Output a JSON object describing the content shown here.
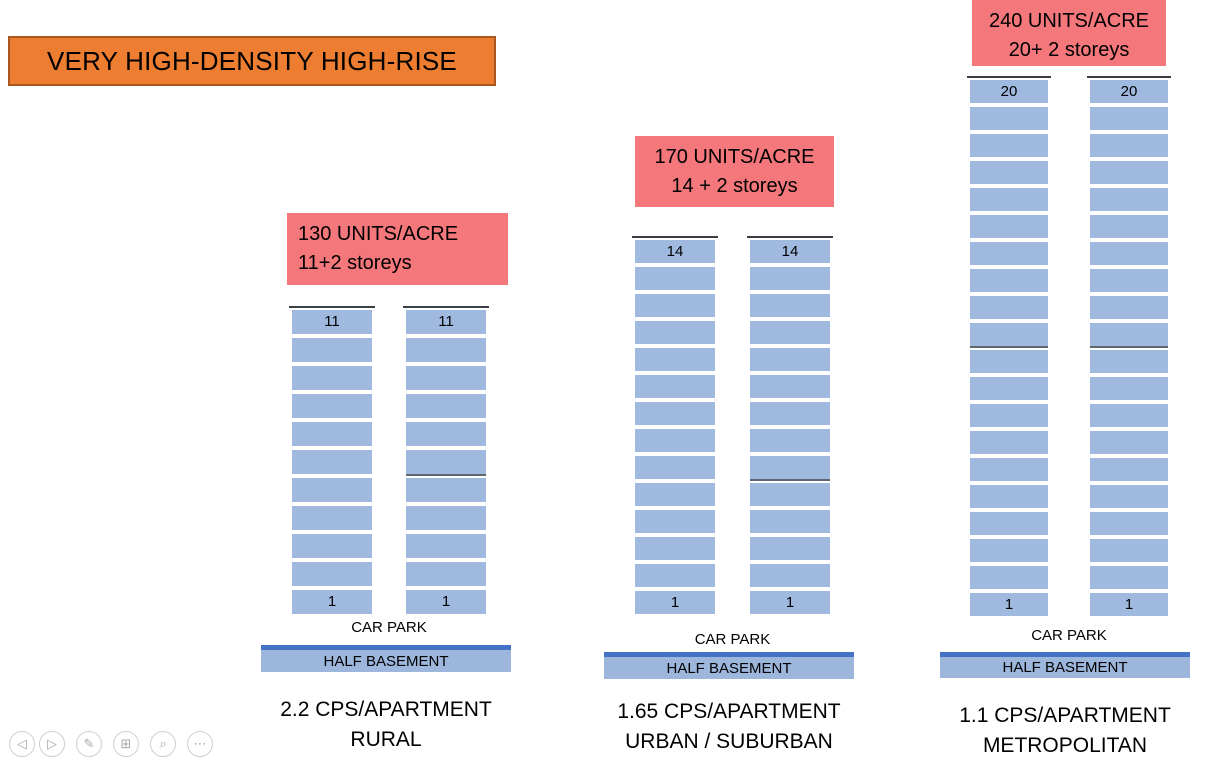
{
  "title": {
    "text": "VERY HIGH-DENSITY HIGH-RISE"
  },
  "colors": {
    "title_bg": "#ED7D31",
    "title_border": "#A9571E",
    "badge_bg": "#F4777B",
    "floor_fill": "#9FB9DF",
    "basement_fill": "#9CB6DC",
    "basement_accent": "#4472C4",
    "roof_line": "#3A3F46"
  },
  "groups": [
    {
      "id": "rural",
      "density_line1": "130 UNITS/ACRE",
      "density_line2": "11+2 storeys",
      "floors": 11,
      "top_floor_label": "11",
      "bottom_floor_label": "1",
      "car_park": "CAR PARK",
      "basement": "HALF BASEMENT",
      "caption_line1": "2.2 CPS/APARTMENT",
      "caption_line2": "RURAL"
    },
    {
      "id": "urban-suburban",
      "density_line1": "170 UNITS/ACRE",
      "density_line2": "14 + 2 storeys",
      "floors": 14,
      "top_floor_label": "14",
      "bottom_floor_label": "1",
      "car_park": "CAR PARK",
      "basement": "HALF BASEMENT",
      "caption_line1": "1.65 CPS/APARTMENT",
      "caption_line2": "URBAN / SUBURBAN"
    },
    {
      "id": "metropolitan",
      "density_line1": "240 UNITS/ACRE",
      "density_line2": "20+ 2 storeys",
      "floors": 20,
      "top_floor_label": "20",
      "bottom_floor_label": "1",
      "car_park": "CAR PARK",
      "basement": "HALF BASEMENT",
      "caption_line1": "1.1 CPS/APARTMENT",
      "caption_line2": "METROPOLITAN"
    }
  ],
  "toolbar": [
    {
      "name": "previous-slide",
      "glyph": "◁"
    },
    {
      "name": "next-slide",
      "glyph": "▷"
    },
    {
      "name": "pen",
      "glyph": "✎"
    },
    {
      "name": "see-all-slides",
      "glyph": "⊞"
    },
    {
      "name": "zoom",
      "glyph": "⌕"
    },
    {
      "name": "more-options",
      "glyph": "⋯"
    }
  ]
}
